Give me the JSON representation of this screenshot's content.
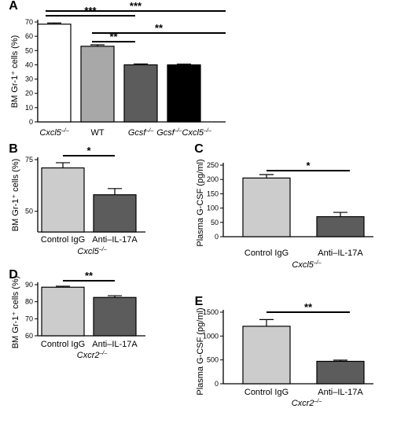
{
  "chart_data": [
    {
      "panel": "A",
      "type": "bar",
      "ylabel": "BM Gr-1⁺ cells (%)",
      "categories": [
        {
          "base": "Cxcl5",
          "sup": "–/–",
          "italic": true
        },
        {
          "base": "WT",
          "sup": "",
          "italic": false
        },
        {
          "base": "Gcsf",
          "sup": "–/–",
          "italic": true
        },
        {
          "base": "Gcsf",
          "sup": "–/–",
          "base2": "Cxcl5",
          "sup2": "–/–",
          "italic": true
        }
      ],
      "values": [
        68.5,
        53,
        40,
        40
      ],
      "errors": [
        0.8,
        1.0,
        0.6,
        0.5
      ],
      "colors": [
        "#ffffff",
        "#a8a8a8",
        "#5c5c5c",
        "#000000"
      ],
      "ylim": [
        0,
        70
      ],
      "yticks": [
        "0",
        "10",
        "20",
        "30",
        "40",
        "50",
        "60",
        "70"
      ],
      "yticks_values": [
        0,
        10,
        20,
        30,
        40,
        50,
        60,
        70
      ],
      "note": "",
      "significance": [
        {
          "from": 0,
          "to": 2,
          "label": "***"
        },
        {
          "from": 0,
          "to": 3,
          "label": "***"
        },
        {
          "from": 1,
          "to": 2,
          "label": "**"
        },
        {
          "from": 1,
          "to": 3,
          "label": "**"
        }
      ]
    },
    {
      "panel": "B",
      "type": "bar",
      "ylabel": "BM Gr-1⁺ cells (%)",
      "categories": [
        {
          "base": "Control IgG",
          "sup": "",
          "italic": false
        },
        {
          "base": "Anti–IL-17A",
          "sup": "",
          "italic": false
        }
      ],
      "values": [
        71,
        58
      ],
      "errors": [
        2.5,
        3
      ],
      "colors": [
        "#cccccc",
        "#5c5c5c"
      ],
      "ylim": [
        40,
        75
      ],
      "yticks": [
        "50",
        "75"
      ],
      "yticks_values": [
        50,
        75
      ],
      "note": {
        "base": "Cxcl5",
        "sup": "–/–"
      },
      "significance": [
        {
          "from": 0,
          "to": 1,
          "label": "*"
        }
      ]
    },
    {
      "panel": "C",
      "type": "bar",
      "ylabel": "Plasma G-CSF (pg/ml)",
      "categories": [
        {
          "base": "Control IgG",
          "sup": "",
          "italic": false
        },
        {
          "base": "Anti–IL-17A",
          "sup": "",
          "italic": false
        }
      ],
      "values": [
        205,
        70
      ],
      "errors": [
        12,
        15
      ],
      "colors": [
        "#cccccc",
        "#5c5c5c"
      ],
      "ylim": [
        0,
        250
      ],
      "yticks": [
        "0",
        "50",
        "100",
        "150",
        "200",
        "250"
      ],
      "yticks_values": [
        0,
        50,
        100,
        150,
        200,
        250
      ],
      "note": {
        "base": "Cxcl5",
        "sup": "–/–"
      },
      "significance": [
        {
          "from": 0,
          "to": 1,
          "label": "*"
        }
      ]
    },
    {
      "panel": "D",
      "type": "bar",
      "ylabel": "BM Gr-1⁺ cells (%)",
      "categories": [
        {
          "base": "Control IgG",
          "sup": "",
          "italic": false
        },
        {
          "base": "Anti–IL-17A",
          "sup": "",
          "italic": false
        }
      ],
      "values": [
        88.5,
        82.5
      ],
      "errors": [
        0.6,
        1.0
      ],
      "colors": [
        "#cccccc",
        "#5c5c5c"
      ],
      "ylim": [
        60,
        90
      ],
      "yticks": [
        "60",
        "70",
        "80",
        "90"
      ],
      "yticks_values": [
        60,
        70,
        80,
        90
      ],
      "note": {
        "base": "Cxcr2",
        "sup": "–/–"
      },
      "significance": [
        {
          "from": 0,
          "to": 1,
          "label": "**"
        }
      ]
    },
    {
      "panel": "E",
      "type": "bar",
      "ylabel": "Plasma G-CSF (pg/ml)",
      "categories": [
        {
          "base": "Control IgG",
          "sup": "",
          "italic": false
        },
        {
          "base": "Anti–IL-17A",
          "sup": "",
          "italic": false
        }
      ],
      "values": [
        1205,
        470
      ],
      "errors": [
        140,
        25
      ],
      "colors": [
        "#cccccc",
        "#5c5c5c"
      ],
      "ylim": [
        0,
        1500
      ],
      "yticks": [
        "0",
        "500",
        "1000",
        "1500"
      ],
      "yticks_values": [
        0,
        500,
        1000,
        1500
      ],
      "note": {
        "base": "Cxcr2",
        "sup": "–/–"
      },
      "significance": [
        {
          "from": 0,
          "to": 1,
          "label": "**"
        }
      ]
    }
  ]
}
